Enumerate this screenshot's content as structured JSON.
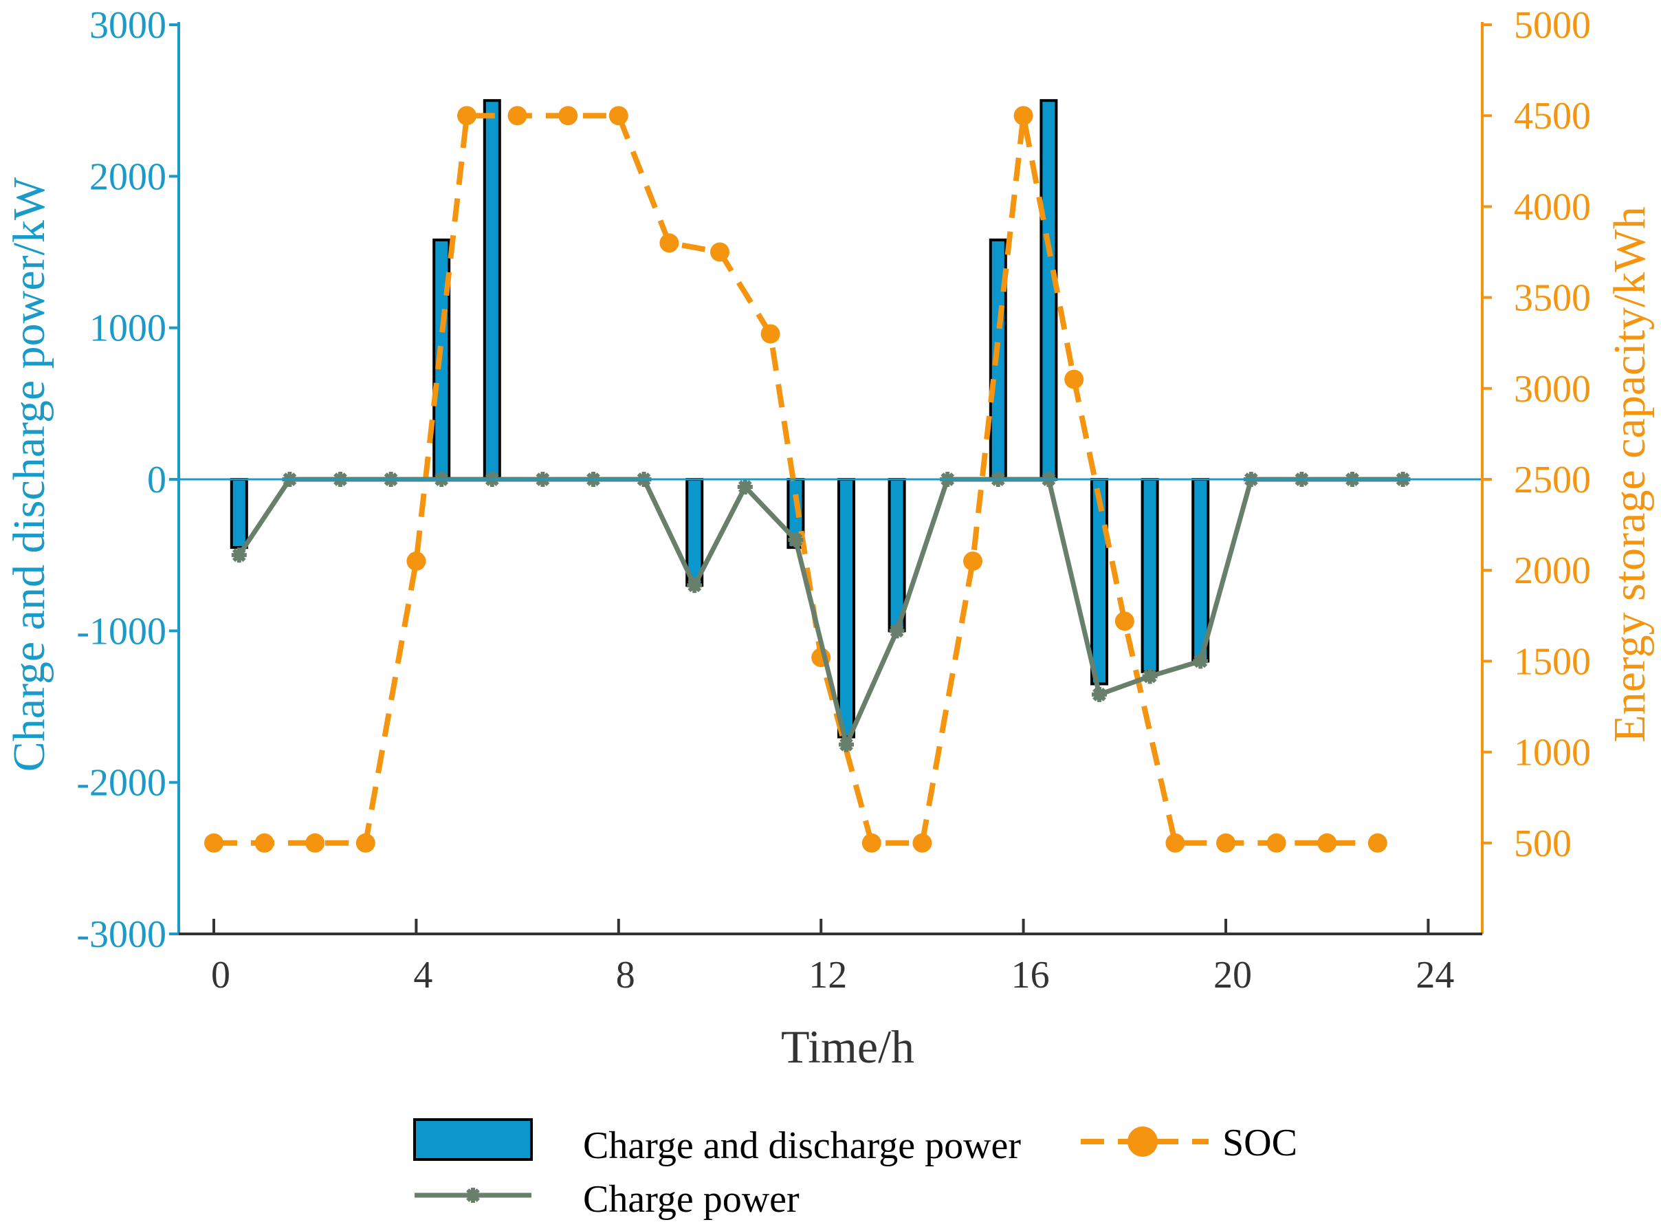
{
  "chart_data": {
    "type": "bar",
    "x_label": "Time/h",
    "y_left_label": "Charge and discharge power/kW",
    "y_right_label": "Energy storage capacity/kWh",
    "x_range": [
      0,
      24
    ],
    "x_ticks": [
      0,
      4,
      8,
      12,
      16,
      20,
      24
    ],
    "y_left_range": [
      -3000,
      3000
    ],
    "y_left_ticks": [
      -3000,
      -2000,
      -1000,
      0,
      1000,
      2000,
      3000
    ],
    "y_right_range": [
      0,
      5000
    ],
    "y_right_ticks": [
      500,
      1000,
      1500,
      2000,
      2500,
      3000,
      3500,
      4000,
      4500,
      5000
    ],
    "legend": {
      "bar": "Charge and discharge power",
      "line": "Charge power",
      "soc": "SOC"
    },
    "colors": {
      "bar": "#0b97cb",
      "line": "#687f6b",
      "soc": "#f5950f",
      "left_axis": "#1a9ac9",
      "right_axis": "#f5950f"
    },
    "series": [
      {
        "name": "Charge and discharge power",
        "kind": "bar",
        "x": [
          0.5,
          4.5,
          5.5,
          9.5,
          11.5,
          12.5,
          13.5,
          15.5,
          16.5,
          17.5,
          18.5,
          19.5
        ],
        "values": [
          -450,
          1580,
          2500,
          -700,
          -450,
          -1700,
          -1000,
          1580,
          2500,
          -1350,
          -1270,
          -1200
        ]
      },
      {
        "name": "Charge power",
        "kind": "line",
        "x": [
          0.5,
          1.5,
          2.5,
          3.5,
          4.5,
          5.5,
          6.5,
          7.5,
          8.5,
          9.5,
          10.5,
          11.5,
          12.5,
          13.5,
          14.5,
          15.5,
          16.5,
          17.5,
          18.5,
          19.5,
          20.5,
          21.5,
          22.5,
          23.5
        ],
        "values": [
          -500,
          0,
          0,
          0,
          0,
          0,
          0,
          0,
          0,
          -700,
          -50,
          -400,
          -1750,
          -1000,
          0,
          0,
          0,
          -1420,
          -1300,
          -1200,
          0,
          0,
          0,
          0
        ]
      },
      {
        "name": "SOC",
        "kind": "line-dashed",
        "axis": "right",
        "x": [
          0,
          1,
          2,
          3,
          4,
          5,
          6,
          7,
          8,
          9,
          10,
          11,
          12,
          13,
          14,
          15,
          16,
          17,
          18,
          19,
          20,
          21,
          22,
          23
        ],
        "values": [
          500,
          500,
          500,
          500,
          2050,
          4500,
          4500,
          4500,
          4500,
          3800,
          3750,
          3300,
          1520,
          500,
          500,
          2050,
          4500,
          3050,
          1720,
          500,
          500,
          500,
          500,
          500
        ]
      }
    ]
  }
}
